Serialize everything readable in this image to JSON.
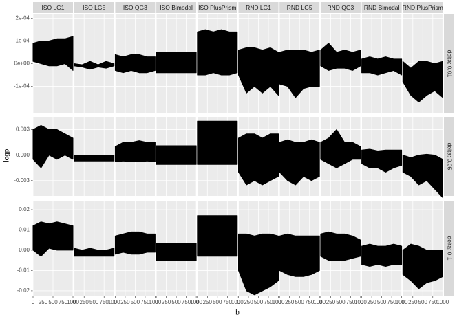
{
  "chart_data": {
    "type": "area",
    "x_label": "b",
    "y_label": "logpi",
    "color": "#000000",
    "grid": true,
    "columns": [
      "ISO LG1",
      "ISO LG5",
      "ISO QG3",
      "ISO Bimodal",
      "ISO PlusPrism",
      "RND LG1",
      "RND LG5",
      "RND QG3",
      "RND Bimodal",
      "RND PlusPrism"
    ],
    "x": [
      0,
      200,
      400,
      600,
      800,
      1000
    ],
    "xlim": [
      0,
      1000
    ],
    "xticks": [
      0,
      250,
      500,
      750,
      1000
    ],
    "rows": [
      {
        "label": "delta: 0.01",
        "ylim": [
          -0.00022,
          0.00022
        ],
        "yticks": [
          {
            "value": -0.0001,
            "label": "-1e-04"
          },
          {
            "value": 0,
            "label": "0e+00"
          },
          {
            "value": 0.0001,
            "label": "1e-04"
          },
          {
            "value": 0.0002,
            "label": "2e-04"
          }
        ],
        "panels": [
          {
            "upper": [
              9e-05,
              0.0001,
              0.0001,
              0.00011,
              0.00011,
              0.00012
            ],
            "lower": [
              1e-05,
              0,
              -1e-05,
              -1e-05,
              0,
              -3e-05
            ]
          },
          {
            "upper": [
              0,
              -5e-06,
              1e-05,
              -5e-06,
              1e-05,
              0
            ],
            "lower": [
              -1e-05,
              -1.5e-05,
              -2.5e-05,
              -1.5e-05,
              -2e-05,
              -1e-05
            ]
          },
          {
            "upper": [
              4e-05,
              3e-05,
              4e-05,
              4e-05,
              3e-05,
              3e-05
            ],
            "lower": [
              -3e-05,
              -4e-05,
              -3e-05,
              -4e-05,
              -4e-05,
              -3e-05
            ]
          },
          {
            "upper": [
              5e-05,
              5e-05,
              5e-05,
              5e-05,
              5e-05,
              5e-05
            ],
            "lower": [
              -4e-05,
              -4e-05,
              -4e-05,
              -4e-05,
              -4e-05,
              -4e-05
            ]
          },
          {
            "upper": [
              0.00014,
              0.00015,
              0.00014,
              0.00015,
              0.00014,
              0.00014
            ],
            "lower": [
              -5e-05,
              -5e-05,
              -4e-05,
              -5e-05,
              -5e-05,
              -4e-05
            ]
          },
          {
            "upper": [
              6e-05,
              7e-05,
              7e-05,
              6e-05,
              7e-05,
              5e-05
            ],
            "lower": [
              -5e-05,
              -0.00013,
              -0.0001,
              -0.00013,
              -0.0001,
              -0.00014
            ]
          },
          {
            "upper": [
              5e-05,
              6e-05,
              6e-05,
              6e-05,
              5e-05,
              6e-05
            ],
            "lower": [
              -9e-05,
              -0.0001,
              -0.00015,
              -0.00011,
              -0.0001,
              -0.0001
            ]
          },
          {
            "upper": [
              6e-05,
              9e-05,
              5e-05,
              6e-05,
              5e-05,
              6e-05
            ],
            "lower": [
              -1e-05,
              -3e-05,
              -2e-05,
              -2e-05,
              -3e-05,
              -1e-05
            ]
          },
          {
            "upper": [
              2e-05,
              3e-05,
              2e-05,
              3e-05,
              2e-05,
              2e-05
            ],
            "lower": [
              -4e-05,
              -4e-05,
              -5e-05,
              -4e-05,
              -3e-05,
              -5e-05
            ]
          },
          {
            "upper": [
              1e-05,
              -2e-05,
              1e-05,
              1e-05,
              0,
              1e-05
            ],
            "lower": [
              -8e-05,
              -0.00014,
              -0.00017,
              -0.00014,
              -0.00012,
              -0.00015
            ]
          }
        ]
      },
      {
        "label": "delta: 0.05",
        "ylim": [
          -0.0048,
          0.0045
        ],
        "yticks": [
          -0.003,
          {
            "value": 0,
            "label": "0.000"
          },
          0.003
        ],
        "panels": [
          {
            "upper": [
              0.003,
              0.0035,
              0.003,
              0.003,
              0.0025,
              0.002
            ],
            "lower": [
              -0.0005,
              -0.0015,
              0,
              -0.0005,
              0,
              -0.0005
            ]
          },
          {
            "upper": [
              0,
              0,
              0,
              0,
              0,
              0
            ],
            "lower": [
              -0.0007,
              -0.0007,
              -0.0007,
              -0.0007,
              -0.0007,
              -0.0007
            ]
          },
          {
            "upper": [
              0.001,
              0.0015,
              0.0015,
              0.0017,
              0.0015,
              0.0015
            ],
            "lower": [
              -0.0008,
              -0.0007,
              -0.0008,
              -0.0008,
              -0.0007,
              -0.0008
            ]
          },
          {
            "upper": [
              0.0011,
              0.0011,
              0.0011,
              0.0011,
              0.0011,
              0.0011
            ],
            "lower": [
              -0.0011,
              -0.0011,
              -0.0011,
              -0.0011,
              -0.0011,
              -0.0011
            ]
          },
          {
            "upper": [
              0.004,
              0.004,
              0.004,
              0.004,
              0.004,
              0.004
            ],
            "lower": [
              -0.0011,
              -0.0011,
              -0.0011,
              -0.0011,
              -0.0011,
              -0.0011
            ]
          },
          {
            "upper": [
              0.002,
              0.0025,
              0.0025,
              0.002,
              0.0025,
              0.0025
            ],
            "lower": [
              -0.002,
              -0.0035,
              -0.003,
              -0.0035,
              -0.003,
              -0.0025
            ]
          },
          {
            "upper": [
              0.0015,
              0.0018,
              0.0015,
              0.0015,
              0.0018,
              0.0015
            ],
            "lower": [
              -0.002,
              -0.003,
              -0.0035,
              -0.0025,
              -0.003,
              -0.0025
            ]
          },
          {
            "upper": [
              0.0015,
              0.002,
              0.003,
              0.0015,
              0.0015,
              0.001
            ],
            "lower": [
              -0.0005,
              -0.001,
              -0.0015,
              -0.001,
              -0.0005,
              -0.0005
            ]
          },
          {
            "upper": [
              0.0006,
              0.0007,
              0.0005,
              0.0006,
              0.0006,
              0.0006
            ],
            "lower": [
              -0.001,
              -0.0015,
              -0.0015,
              -0.002,
              -0.0015,
              -0.0012
            ]
          },
          {
            "upper": [
              0,
              -0.0003,
              0,
              0.0001,
              0,
              -0.0005
            ],
            "lower": [
              -0.002,
              -0.0025,
              -0.0035,
              -0.003,
              -0.004,
              -0.005
            ]
          }
        ]
      },
      {
        "label": "delta: 0.1",
        "ylim": [
          -0.0224,
          0.0244
        ],
        "yticks": [
          -0.02,
          -0.01,
          {
            "value": 0,
            "label": "0.00"
          },
          0.01,
          0.02
        ],
        "panels": [
          {
            "upper": [
              0.012,
              0.014,
              0.013,
              0.014,
              0.013,
              0.012
            ],
            "lower": [
              0,
              -0.003,
              0.001,
              0,
              0,
              0
            ]
          },
          {
            "upper": [
              0.001,
              0,
              0.001,
              0,
              0,
              0.001
            ],
            "lower": [
              -0.003,
              -0.003,
              -0.003,
              -0.003,
              -0.003,
              -0.003
            ]
          },
          {
            "upper": [
              0.007,
              0.008,
              0.009,
              0.009,
              0.008,
              0.008
            ],
            "lower": [
              -0.002,
              -0.001,
              -0.002,
              -0.002,
              -0.001,
              -0.001
            ]
          },
          {
            "upper": [
              0.0035,
              0.0035,
              0.0035,
              0.0035,
              0.0035,
              0.0035
            ],
            "lower": [
              -0.005,
              -0.005,
              -0.005,
              -0.005,
              -0.005,
              -0.005
            ]
          },
          {
            "upper": [
              0.017,
              0.017,
              0.017,
              0.017,
              0.017,
              0.017
            ],
            "lower": [
              -0.003,
              -0.003,
              -0.003,
              -0.003,
              -0.003,
              -0.003
            ]
          },
          {
            "upper": [
              0.008,
              0.008,
              0.007,
              0.008,
              0.008,
              0.007
            ],
            "lower": [
              -0.01,
              -0.02,
              -0.022,
              -0.02,
              -0.018,
              -0.015
            ]
          },
          {
            "upper": [
              0.007,
              0.008,
              0.007,
              0.007,
              0.007,
              0.007
            ],
            "lower": [
              -0.01,
              -0.012,
              -0.013,
              -0.013,
              -0.012,
              -0.01
            ]
          },
          {
            "upper": [
              0.008,
              0.009,
              0.008,
              0.008,
              0.007,
              0.005
            ],
            "lower": [
              -0.003,
              -0.005,
              -0.005,
              -0.005,
              -0.004,
              -0.003
            ]
          },
          {
            "upper": [
              0.002,
              0.003,
              0.002,
              0.002,
              0.003,
              0.002
            ],
            "lower": [
              -0.007,
              -0.008,
              -0.007,
              -0.008,
              -0.007,
              -0.007
            ]
          },
          {
            "upper": [
              0,
              0.003,
              0.002,
              0,
              0,
              0
            ],
            "lower": [
              -0.012,
              -0.015,
              -0.019,
              -0.016,
              -0.015,
              -0.013
            ]
          }
        ]
      }
    ]
  }
}
